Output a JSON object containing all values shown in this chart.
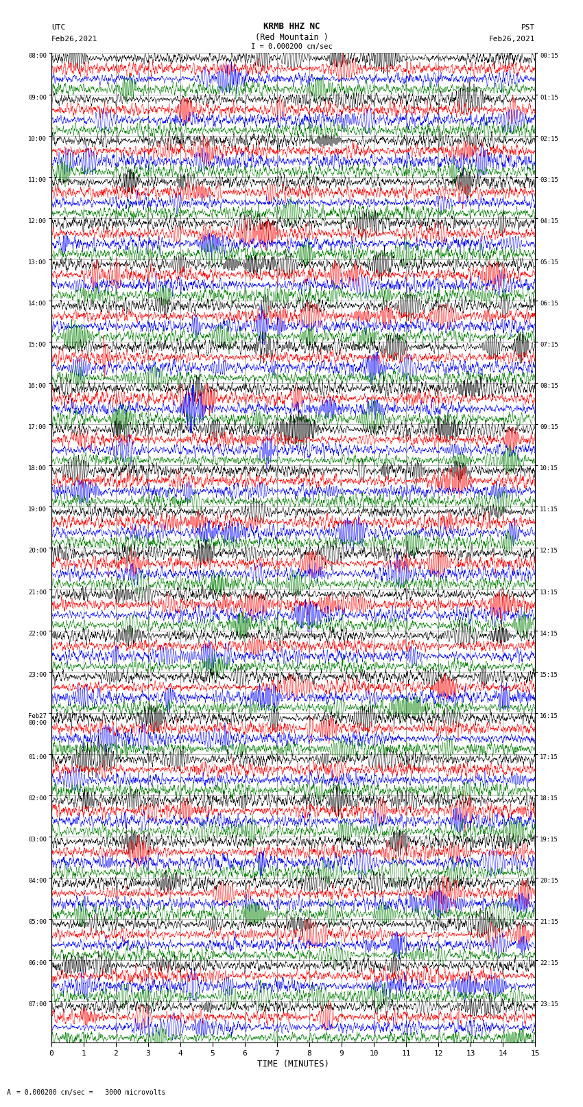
{
  "title_line1": "KRMB HHZ NC",
  "title_line2": "(Red Mountain )",
  "title_line3": "I = 0.000200 cm/sec",
  "left_label_line1": "UTC",
  "left_label_line2": "Feb26,2021",
  "right_label_line1": "PST",
  "right_label_line2": "Feb26,2021",
  "bottom_xlabel": "TIME (MINUTES)",
  "scale_text": "= 0.000200 cm/sec =   3000 microvolts",
  "xtick_labels": [
    "0",
    "1",
    "2",
    "3",
    "4",
    "5",
    "6",
    "7",
    "8",
    "9",
    "10",
    "11",
    "12",
    "13",
    "14",
    "15"
  ],
  "utc_row_labels": [
    "08:00",
    "09:00",
    "10:00",
    "11:00",
    "12:00",
    "13:00",
    "14:00",
    "15:00",
    "16:00",
    "17:00",
    "18:00",
    "19:00",
    "20:00",
    "21:00",
    "22:00",
    "23:00",
    "Feb27\n00:00",
    "01:00",
    "02:00",
    "03:00",
    "04:00",
    "05:00",
    "06:00",
    "07:00"
  ],
  "pst_row_labels": [
    "00:15",
    "01:15",
    "02:15",
    "03:15",
    "04:15",
    "05:15",
    "06:15",
    "07:15",
    "08:15",
    "09:15",
    "10:15",
    "11:15",
    "12:15",
    "13:15",
    "14:15",
    "15:15",
    "16:15",
    "17:15",
    "18:15",
    "19:15",
    "20:15",
    "21:15",
    "22:15",
    "23:15"
  ],
  "n_rows": 24,
  "traces_per_row": 4,
  "trace_colors": [
    "black",
    "red",
    "blue",
    "green"
  ],
  "bg_color": "#ffffff",
  "fig_width": 8.5,
  "fig_height": 16.13,
  "dpi": 100,
  "n_points": 3000,
  "amp": 0.22,
  "lw": 0.35
}
